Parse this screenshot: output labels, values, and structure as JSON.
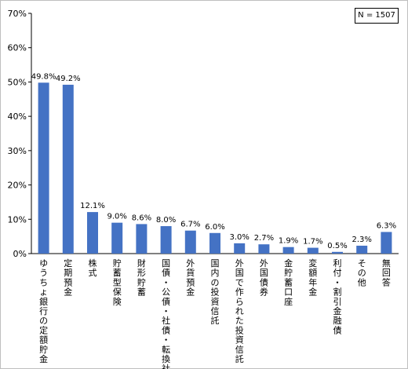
{
  "chart_data": {
    "type": "bar",
    "title": "",
    "xlabel": "",
    "ylabel": "",
    "sample_label": "N = 1507",
    "ylim": [
      0,
      70
    ],
    "yticks": [
      "0%",
      "10%",
      "20%",
      "30%",
      "40%",
      "50%",
      "60%",
      "70%"
    ],
    "bar_color": "#4472C4",
    "grid": false,
    "categories": [
      "ゆうちょ銀行の定額貯金",
      "定期預金",
      "株式",
      "貯蓄型保険",
      "財形貯蓄",
      "国債・公債・社債・転換社債",
      "外貨預金",
      "国内の投資信託",
      "外国で作られた投資信託",
      "外国債券",
      "金貯蓄口座",
      "変額年金",
      "利付・割引金融債",
      "その他",
      "無回答"
    ],
    "values": [
      49.8,
      49.2,
      12.1,
      9.0,
      8.6,
      8.0,
      6.7,
      6.0,
      3.0,
      2.7,
      1.9,
      1.7,
      0.5,
      2.3,
      6.3
    ],
    "value_labels": [
      "49.8%",
      "49.2%",
      "12.1%",
      "9.0%",
      "8.6%",
      "8.0%",
      "6.7%",
      "6.0%",
      "3.0%",
      "2.7%",
      "1.9%",
      "1.7%",
      "0.5%",
      "2.3%",
      "6.3%"
    ]
  }
}
